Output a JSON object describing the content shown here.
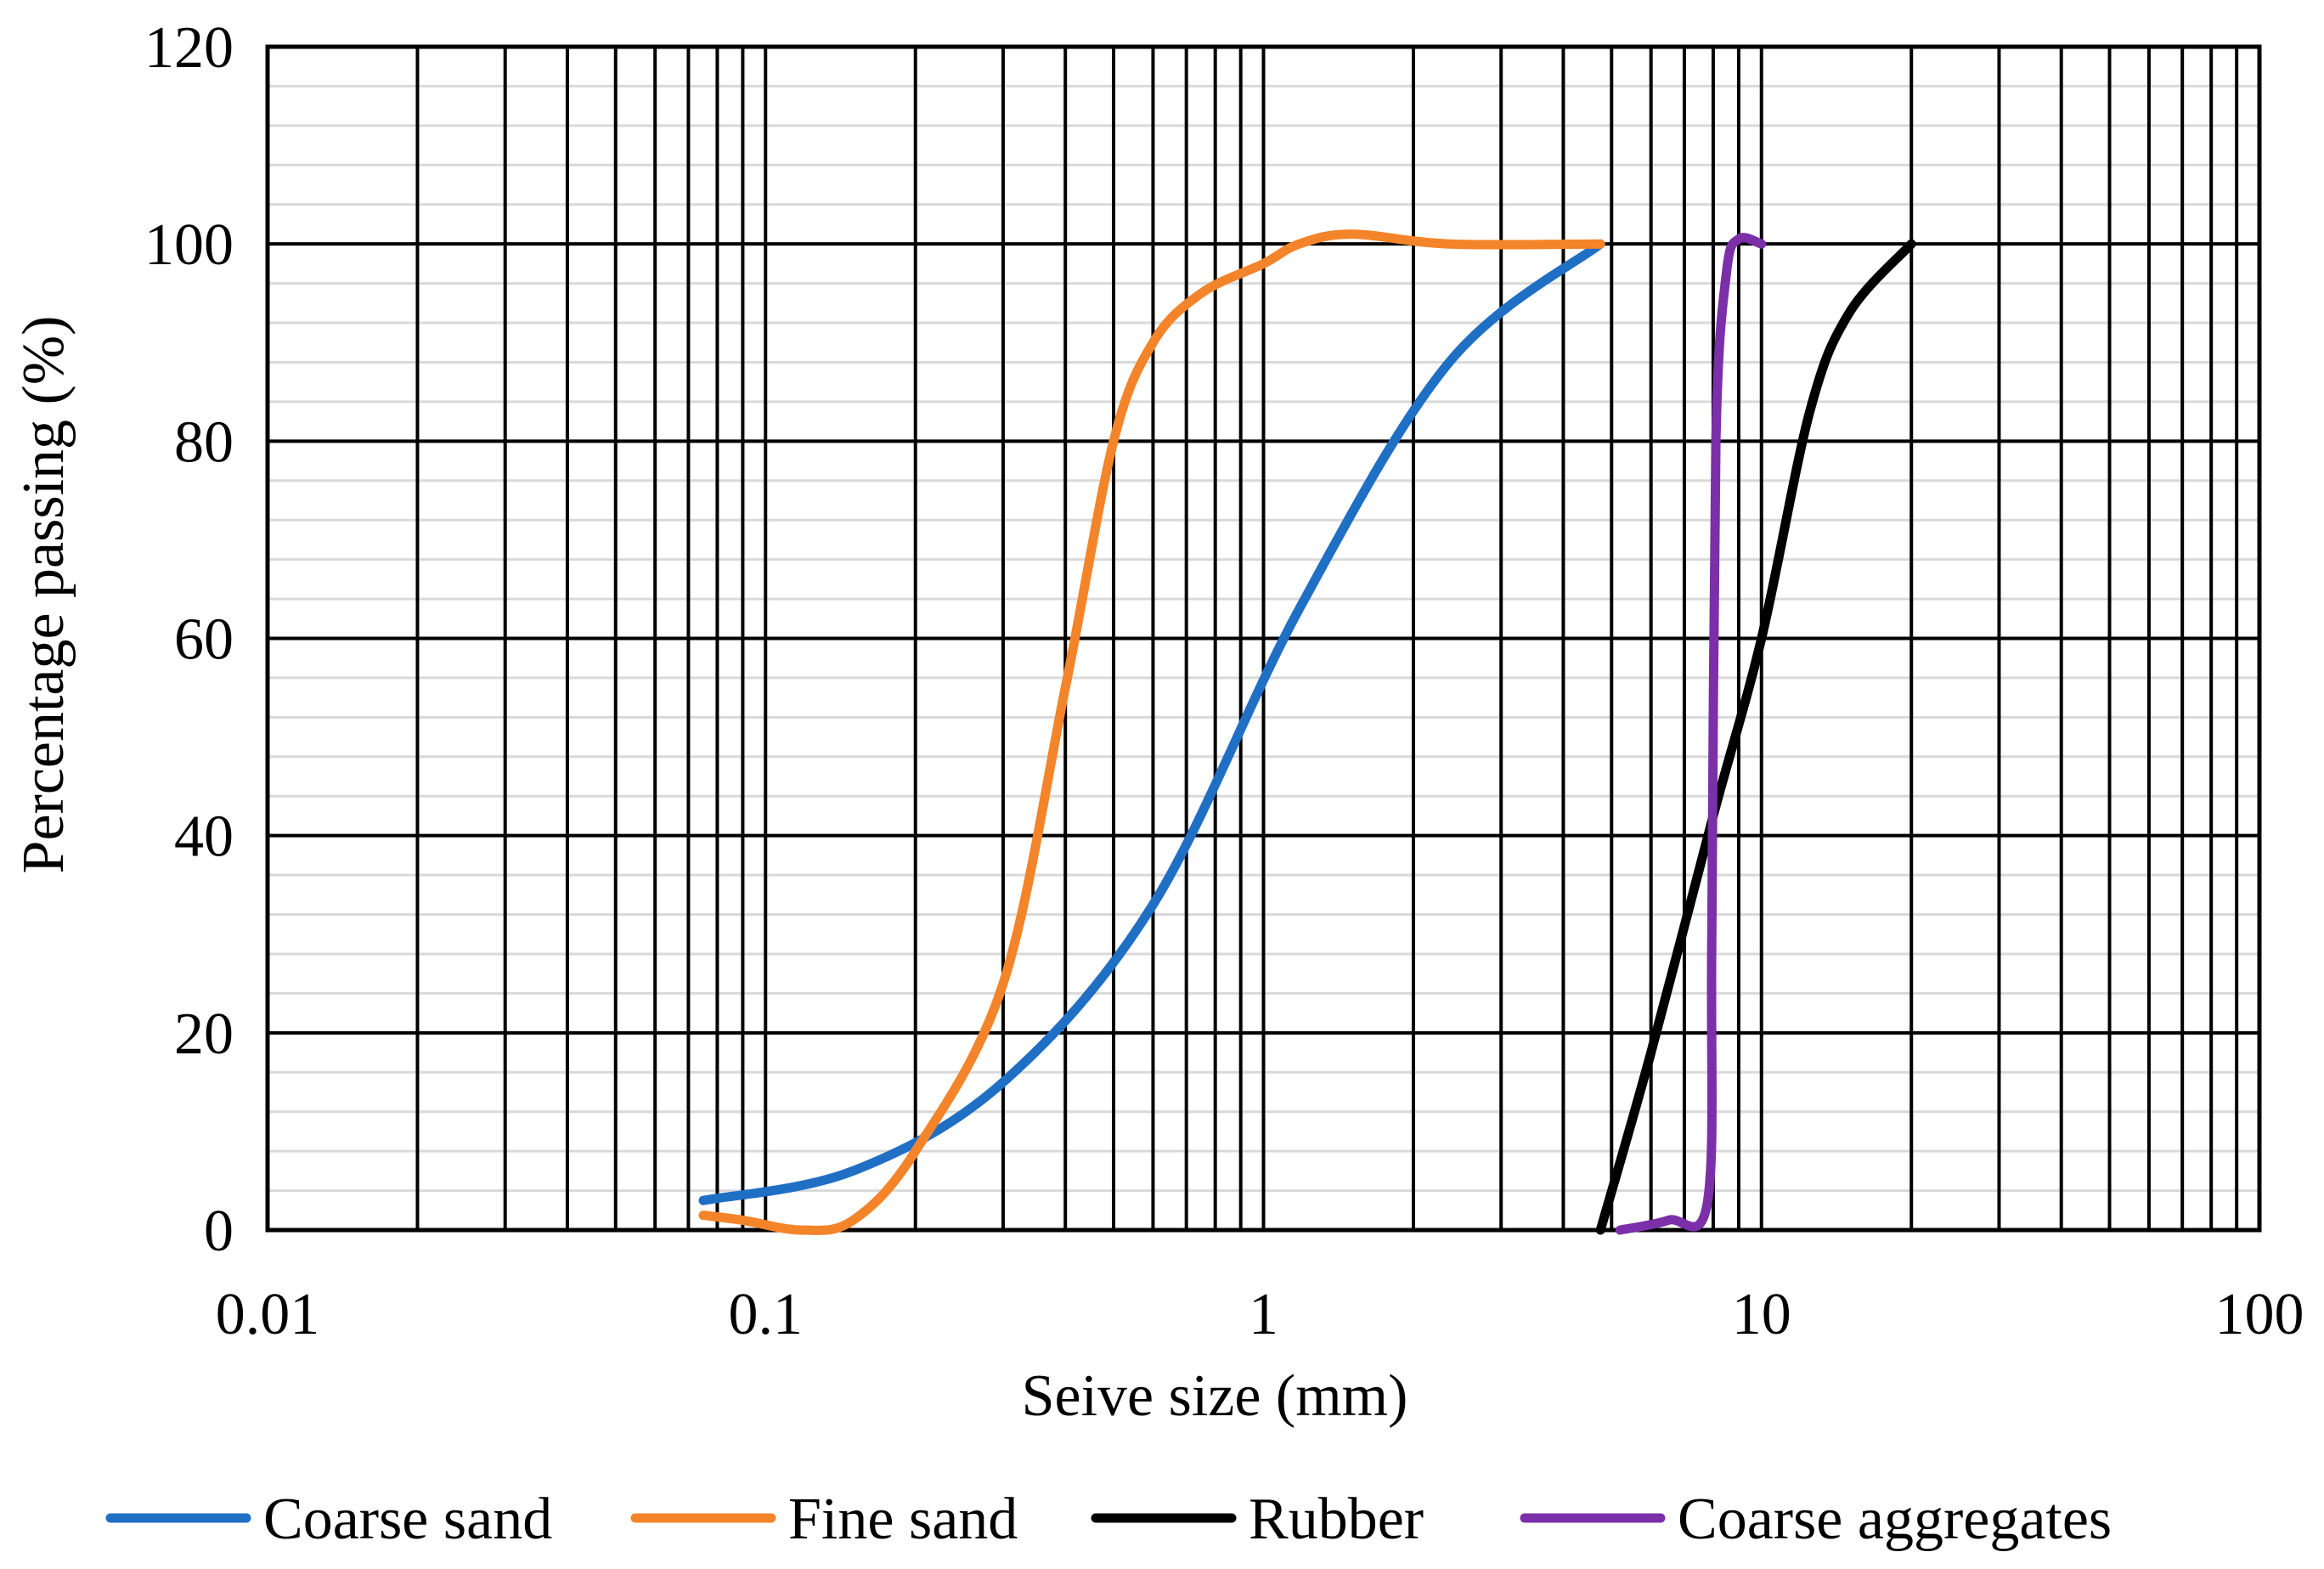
{
  "chart_data": {
    "type": "line",
    "title": "",
    "xlabel": "Seive size (mm)",
    "ylabel": "Percentage passing (%)",
    "xscale": "log",
    "xlim": [
      0.01,
      100
    ],
    "ylim": [
      0,
      120
    ],
    "x_ticks": [
      "0.01",
      "0.1",
      "1",
      "10",
      "100"
    ],
    "y_ticks": [
      "0",
      "20",
      "40",
      "60",
      "80",
      "100",
      "120"
    ],
    "grid": true,
    "legend_position": "bottom",
    "series": [
      {
        "name": "Coarse sand",
        "color": "#1F6FC5",
        "points": [
          [
            0.075,
            3
          ],
          [
            0.15,
            6
          ],
          [
            0.3,
            15
          ],
          [
            0.6,
            33
          ],
          [
            1.18,
            63
          ],
          [
            2.36,
            88
          ],
          [
            4.75,
            100
          ]
        ]
      },
      {
        "name": "Fine sand",
        "color": "#F4842A",
        "points": [
          [
            0.075,
            1.5
          ],
          [
            0.09,
            1
          ],
          [
            0.118,
            0
          ],
          [
            0.15,
            1
          ],
          [
            0.2,
            8
          ],
          [
            0.3,
            25
          ],
          [
            0.4,
            55
          ],
          [
            0.5,
            80
          ],
          [
            0.6,
            90
          ],
          [
            0.75,
            95
          ],
          [
            1.0,
            98
          ],
          [
            1.18,
            100
          ],
          [
            1.5,
            101
          ],
          [
            2.36,
            100
          ],
          [
            4.75,
            100
          ]
        ]
      },
      {
        "name": "Rubber",
        "color": "#000000",
        "points": [
          [
            4.75,
            0
          ],
          [
            6.0,
            18
          ],
          [
            8.0,
            42
          ],
          [
            10.0,
            60
          ],
          [
            12.5,
            83
          ],
          [
            15.0,
            93
          ],
          [
            20.0,
            100
          ]
        ]
      },
      {
        "name": "Coarse aggregates",
        "color": "#7B2FA8",
        "points": [
          [
            5.2,
            0
          ],
          [
            6.5,
            1
          ],
          [
            7.8,
            3
          ],
          [
            7.95,
            30
          ],
          [
            8.1,
            80
          ],
          [
            8.5,
            97
          ],
          [
            9.0,
            100.5
          ],
          [
            10.0,
            100
          ]
        ]
      }
    ]
  }
}
